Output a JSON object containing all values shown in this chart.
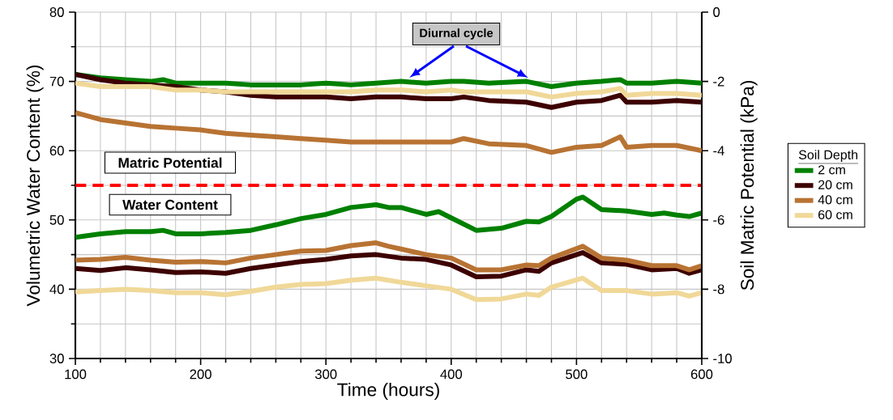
{
  "chart_data": {
    "type": "line",
    "xlabel": "Time (hours)",
    "ylabel": "Volumetric Water Content (%)",
    "y2label": "Soil Matric Potential (kPa)",
    "legend_title": "Soil Depth",
    "legend": "right",
    "grid": true,
    "xlim": [
      100,
      600
    ],
    "xticks": [
      100,
      200,
      300,
      400,
      500,
      600
    ],
    "ylim": [
      30,
      80
    ],
    "yticks": [
      30,
      40,
      50,
      60,
      70,
      80
    ],
    "y2lim": [
      -10,
      0
    ],
    "y2ticks": [
      -10,
      -8,
      -6,
      -4,
      -2,
      0
    ],
    "annotations": [
      "Diurnal cycle",
      "Matric Potential",
      "Water Content"
    ],
    "ref_lines": [
      {
        "axis": "y",
        "value": 55,
        "color": "#ff0000",
        "line_style": "dashed"
      }
    ],
    "series": [
      {
        "name": "2 cm",
        "color": "#008000",
        "x": [
          100,
          120,
          140,
          160,
          170,
          180,
          200,
          220,
          240,
          260,
          280,
          300,
          320,
          340,
          350,
          360,
          380,
          390,
          400,
          420,
          440,
          460,
          470,
          480,
          500,
          505,
          520,
          530,
          540,
          560,
          570,
          580,
          590,
          600
        ],
        "values": [
          47.5,
          48,
          48.3,
          48.3,
          48.5,
          48,
          48,
          48.2,
          48.5,
          49.3,
          50.2,
          50.8,
          51.8,
          52.2,
          51.8,
          51.8,
          50.8,
          51.2,
          50.3,
          48.5,
          48.8,
          49.8,
          49.7,
          50.5,
          53,
          53.3,
          51.5,
          51.4,
          51.3,
          50.8,
          51,
          50.7,
          50.5,
          51
        ]
      },
      {
        "name": "20 cm",
        "color": "#3d0000",
        "x": [
          100,
          120,
          140,
          160,
          180,
          200,
          220,
          240,
          260,
          280,
          300,
          320,
          340,
          360,
          380,
          400,
          420,
          440,
          460,
          470,
          480,
          505,
          520,
          540,
          560,
          580,
          590,
          600
        ],
        "values": [
          43,
          42.7,
          43.1,
          42.8,
          42.4,
          42.5,
          42.3,
          43,
          43.5,
          44,
          44.3,
          44.8,
          45,
          44.5,
          44.3,
          43.5,
          41.8,
          41.9,
          42.8,
          42.6,
          43.8,
          45.3,
          43.8,
          43.6,
          42.8,
          43,
          42.3,
          42.8
        ]
      },
      {
        "name": "40 cm",
        "color": "#b87333",
        "x": [
          100,
          120,
          140,
          160,
          180,
          200,
          220,
          240,
          260,
          280,
          300,
          320,
          340,
          350,
          360,
          380,
          400,
          420,
          440,
          460,
          470,
          480,
          505,
          520,
          540,
          560,
          580,
          590,
          600
        ],
        "values": [
          44.2,
          44.3,
          44.6,
          44.2,
          43.9,
          44,
          43.8,
          44.5,
          45,
          45.5,
          45.6,
          46.3,
          46.7,
          46.2,
          45.8,
          45,
          44.5,
          42.8,
          42.8,
          43.5,
          43.4,
          44.5,
          46.2,
          44.5,
          44.2,
          43.4,
          43.4,
          42.8,
          43.4
        ]
      },
      {
        "name": "60 cm",
        "color": "#f0d898",
        "x": [
          100,
          120,
          140,
          160,
          180,
          200,
          220,
          240,
          260,
          280,
          300,
          320,
          340,
          360,
          380,
          400,
          420,
          440,
          460,
          470,
          480,
          505,
          520,
          540,
          560,
          580,
          590,
          600
        ],
        "values": [
          39.6,
          39.8,
          40,
          39.8,
          39.5,
          39.5,
          39.2,
          39.7,
          40.3,
          40.7,
          40.8,
          41.3,
          41.6,
          41,
          40.5,
          40,
          38.5,
          38.6,
          39.3,
          39.1,
          40.3,
          41.6,
          39.8,
          39.8,
          39.3,
          39.5,
          39,
          39.5
        ]
      },
      {
        "color": "#008000",
        "axis": "y2",
        "x": [
          100,
          120,
          140,
          160,
          170,
          180,
          200,
          220,
          240,
          280,
          300,
          320,
          340,
          360,
          380,
          400,
          410,
          430,
          460,
          480,
          500,
          520,
          535,
          540,
          560,
          580,
          600
        ],
        "values": [
          -1.8,
          -1.9,
          -1.95,
          -2,
          -1.95,
          -2.05,
          -2.05,
          -2.05,
          -2.1,
          -2.1,
          -2.05,
          -2.1,
          -2.05,
          -2,
          -2.05,
          -2,
          -2,
          -2.05,
          -2,
          -2.15,
          -2.05,
          -2,
          -1.95,
          -2.05,
          -2.05,
          -2,
          -2.05
        ]
      },
      {
        "color": "#3d0000",
        "axis": "y2",
        "x": [
          100,
          120,
          140,
          160,
          180,
          200,
          220,
          240,
          260,
          280,
          300,
          320,
          340,
          360,
          380,
          400,
          410,
          430,
          460,
          480,
          500,
          520,
          535,
          540,
          560,
          580,
          600
        ],
        "values": [
          -1.8,
          -1.95,
          -2.05,
          -2.1,
          -2.15,
          -2.25,
          -2.3,
          -2.4,
          -2.45,
          -2.45,
          -2.45,
          -2.5,
          -2.45,
          -2.45,
          -2.5,
          -2.5,
          -2.45,
          -2.55,
          -2.6,
          -2.75,
          -2.6,
          -2.55,
          -2.4,
          -2.6,
          -2.6,
          -2.55,
          -2.6
        ]
      },
      {
        "color": "#b87333",
        "axis": "y2",
        "x": [
          100,
          120,
          140,
          160,
          180,
          200,
          220,
          240,
          260,
          280,
          300,
          320,
          340,
          360,
          380,
          400,
          410,
          430,
          460,
          480,
          500,
          520,
          535,
          540,
          560,
          580,
          600
        ],
        "values": [
          -2.9,
          -3.1,
          -3.2,
          -3.3,
          -3.35,
          -3.4,
          -3.5,
          -3.55,
          -3.6,
          -3.65,
          -3.7,
          -3.75,
          -3.75,
          -3.75,
          -3.75,
          -3.75,
          -3.65,
          -3.8,
          -3.85,
          -4.05,
          -3.9,
          -3.85,
          -3.6,
          -3.9,
          -3.85,
          -3.85,
          -4
        ]
      },
      {
        "color": "#f0d898",
        "axis": "y2",
        "x": [
          100,
          120,
          140,
          160,
          180,
          200,
          220,
          240,
          280,
          300,
          320,
          340,
          360,
          380,
          400,
          410,
          430,
          460,
          480,
          500,
          520,
          535,
          540,
          560,
          580,
          600
        ],
        "values": [
          -2.05,
          -2.15,
          -2.15,
          -2.15,
          -2.25,
          -2.25,
          -2.3,
          -2.3,
          -2.3,
          -2.3,
          -2.3,
          -2.25,
          -2.25,
          -2.3,
          -2.25,
          -2.3,
          -2.3,
          -2.3,
          -2.45,
          -2.35,
          -2.3,
          -2.2,
          -2.4,
          -2.35,
          -2.35,
          -2.4
        ]
      }
    ]
  }
}
